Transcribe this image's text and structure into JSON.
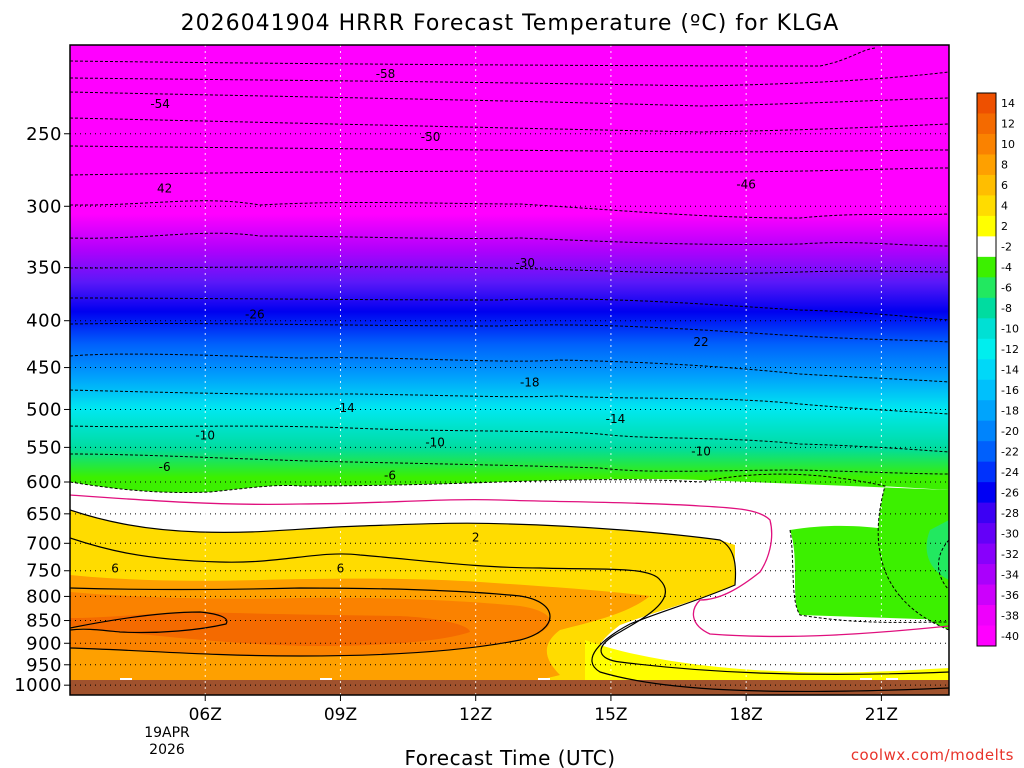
{
  "chart_data": {
    "type": "contour",
    "title": "2026041904 HRRR Forecast Temperature (ºC) for KLGA",
    "xlabel": "Forecast Time (UTC)",
    "ylabel": "",
    "credit": "coolwx.com/modelts",
    "date_label": [
      "19APR",
      "2026"
    ],
    "x_range_hours": [
      3.0,
      22.5
    ],
    "x_ticks": [
      {
        "hour": 6,
        "label": "06Z"
      },
      {
        "hour": 9,
        "label": "09Z"
      },
      {
        "hour": 12,
        "label": "12Z"
      },
      {
        "hour": 15,
        "label": "15Z"
      },
      {
        "hour": 18,
        "label": "18Z"
      },
      {
        "hour": 21,
        "label": "21Z"
      }
    ],
    "y_axis": "pressure_hPa",
    "y_range": [
      1025,
      200
    ],
    "y_ticks": [
      250,
      300,
      350,
      400,
      450,
      500,
      550,
      600,
      650,
      700,
      750,
      800,
      850,
      900,
      950,
      1000
    ],
    "colorbar": {
      "levels": [
        "14",
        "12",
        "10",
        "8",
        "6",
        "4",
        "2",
        "-2",
        "-4",
        "-6",
        "-8",
        "-10",
        "-12",
        "-14",
        "-16",
        "-18",
        "-20",
        "-22",
        "-24",
        "-26",
        "-28",
        "-30",
        "-32",
        "-34",
        "-36",
        "-38",
        "-40"
      ],
      "colors": [
        "#ee5000",
        "#f46a00",
        "#fa8200",
        "#fea000",
        "#ffbe00",
        "#ffdc00",
        "#ffff00",
        "#ffffff",
        "#3cf000",
        "#22e860",
        "#00dca0",
        "#00e0d4",
        "#00eeee",
        "#00d8f8",
        "#00c0fc",
        "#00a4fc",
        "#0084fc",
        "#0060fc",
        "#0032fc",
        "#0000f4",
        "#3c00f4",
        "#6400f8",
        "#8800fc",
        "#aa00fc",
        "#cc00fc",
        "#ee00fc",
        "#ff00ff"
      ]
    },
    "contour_labels": [
      {
        "hour": 10.0,
        "p": 215,
        "label": "-58"
      },
      {
        "hour": 5.0,
        "p": 232,
        "label": "-54"
      },
      {
        "hour": 11.0,
        "p": 252,
        "label": "-50"
      },
      {
        "hour": 5.1,
        "p": 287,
        "label": "42"
      },
      {
        "hour": 18.0,
        "p": 284,
        "label": "-46"
      },
      {
        "hour": 13.1,
        "p": 346,
        "label": "-30"
      },
      {
        "hour": 7.1,
        "p": 394,
        "label": "-26"
      },
      {
        "hour": 17.0,
        "p": 422,
        "label": "22"
      },
      {
        "hour": 13.2,
        "p": 467,
        "label": "-18"
      },
      {
        "hour": 9.1,
        "p": 498,
        "label": "-14"
      },
      {
        "hour": 15.1,
        "p": 512,
        "label": "-14"
      },
      {
        "hour": 6.0,
        "p": 534,
        "label": "-10"
      },
      {
        "hour": 11.1,
        "p": 543,
        "label": "-10"
      },
      {
        "hour": 17.0,
        "p": 556,
        "label": "-10"
      },
      {
        "hour": 5.1,
        "p": 578,
        "label": "-6"
      },
      {
        "hour": 10.1,
        "p": 590,
        "label": "-6"
      },
      {
        "hour": 12.0,
        "p": 690,
        "label": "2"
      },
      {
        "hour": 4.0,
        "p": 746,
        "label": "6"
      },
      {
        "hour": 9.0,
        "p": 746,
        "label": "6"
      }
    ]
  }
}
